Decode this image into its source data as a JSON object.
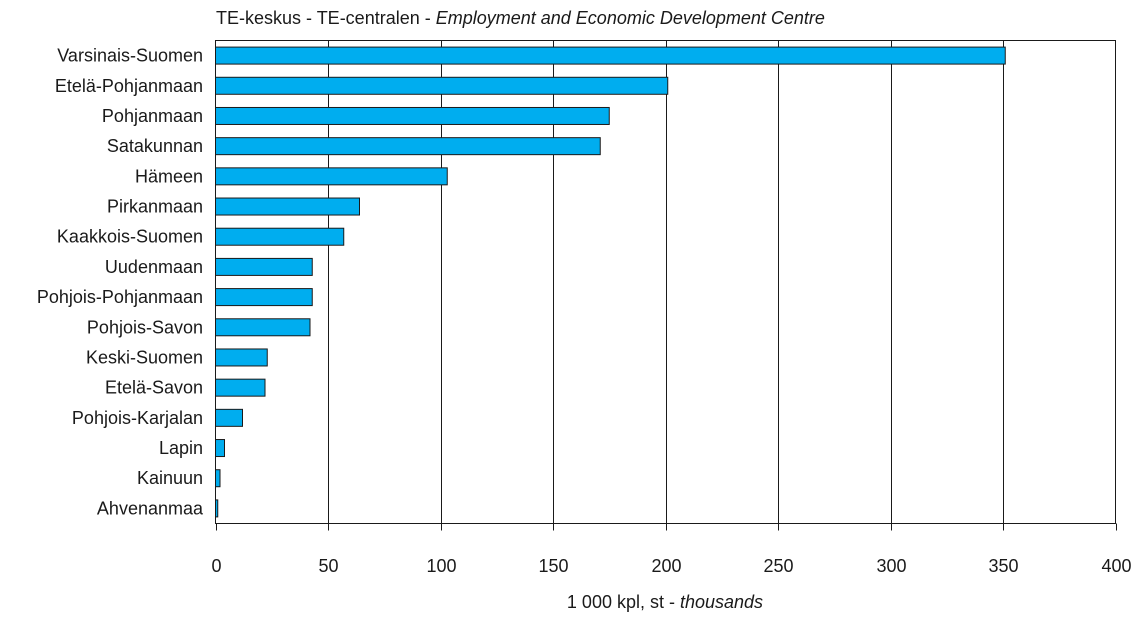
{
  "chart_data": {
    "type": "bar",
    "orientation": "horizontal",
    "title": "TE-keskus - TE-centralen - ",
    "title_italic": "Employment and Economic Development Centre",
    "xlabel": "1 000 kpl, st - ",
    "xlabel_italic": "thousands",
    "ylabel": "",
    "xlim": [
      0,
      400
    ],
    "xticks": [
      0,
      50,
      100,
      150,
      200,
      250,
      300,
      350,
      400
    ],
    "xtick_labels": [
      "0",
      "50",
      "100",
      "150",
      "200",
      "250",
      "300",
      "350",
      "400"
    ],
    "grid": "vertical lines at major ticks",
    "legend": "none",
    "categories": [
      "Varsinais-Suomen",
      "Etelä-Pohjanmaan",
      "Pohjanmaan",
      "Satakunnan",
      "Hämeen",
      "Pirkanmaan",
      "Kaakkois-Suomen",
      "Uudenmaan",
      "Pohjois-Pohjanmaan",
      "Pohjois-Savon",
      "Keski-Suomen",
      "Etelä-Savon",
      "Pohjois-Karjalan",
      "Lapin",
      "Kainuun",
      "Ahvenanmaa"
    ],
    "values": [
      351,
      201,
      175,
      171,
      103,
      64,
      57,
      43,
      43,
      42,
      23,
      22,
      12,
      4,
      2,
      1
    ],
    "colors": {
      "bar_fill": "#00adef",
      "bar_stroke": "#1a1a1a",
      "grid": "#1a1a1a",
      "frame": "#1a1a1a"
    }
  }
}
